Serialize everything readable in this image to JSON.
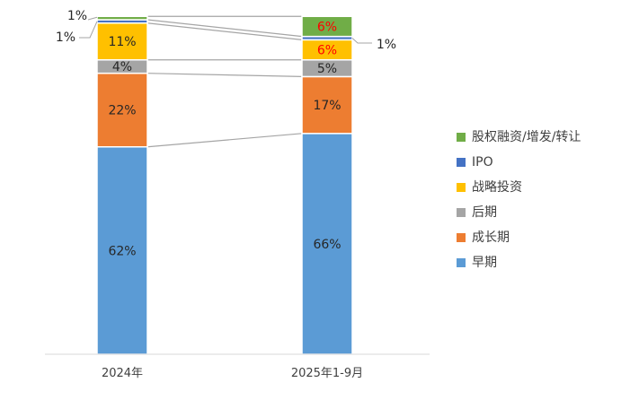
{
  "chart_data": {
    "type": "bar",
    "stacked": true,
    "percent": true,
    "categories": [
      "2024年",
      "2025年1-9月"
    ],
    "series": [
      {
        "name": "早期",
        "values": [
          62,
          66
        ],
        "color": "#5B9BD5",
        "labels": [
          "62%",
          "66%"
        ]
      },
      {
        "name": "成长期",
        "values": [
          22,
          17
        ],
        "color": "#ED7D31",
        "labels": [
          "22%",
          "17%"
        ]
      },
      {
        "name": "后期",
        "values": [
          4,
          5
        ],
        "color": "#A5A5A5",
        "labels": [
          "4%",
          "5%"
        ]
      },
      {
        "name": "战略投资",
        "values": [
          11,
          6
        ],
        "color": "#FFC000",
        "labels": [
          "11%",
          "6%"
        ]
      },
      {
        "name": "IPO",
        "values": [
          1,
          1
        ],
        "color": "#4472C4",
        "labels": [
          "1%",
          "1%"
        ]
      },
      {
        "name": "股权融资/增发/转让",
        "values": [
          1,
          6
        ],
        "color": "#70AD47",
        "labels": [
          "1%",
          "6%"
        ]
      }
    ],
    "highlight_label_color": "#FF0000",
    "ylim": [
      0,
      100
    ],
    "grid": false,
    "legend": "right",
    "title": "",
    "xlabel": "",
    "ylabel": ""
  }
}
